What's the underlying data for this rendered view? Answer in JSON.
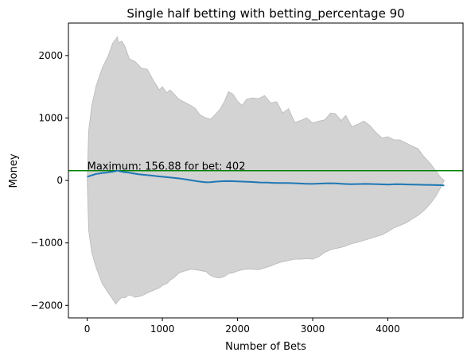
{
  "chart_data": {
    "type": "line",
    "title": "Single half betting with betting_percentage 90",
    "xlabel": "Number of Bets",
    "ylabel": "Money",
    "xlim": [
      -250,
      5000
    ],
    "ylim": [
      -2200,
      2520
    ],
    "x_ticks": [
      0,
      1000,
      2000,
      3000,
      4000
    ],
    "y_ticks": [
      -2000,
      -1000,
      0,
      1000,
      2000
    ],
    "x_tick_labels": [
      "0",
      "1000",
      "2000",
      "3000",
      "4000"
    ],
    "y_tick_labels": [
      "−2000",
      "−1000",
      "0",
      "1000",
      "2000"
    ],
    "grid": false,
    "colors": {
      "mean_line": "#1f77b4",
      "band_fill": "#d3d3d3",
      "band_edge": "#b8b8b8",
      "max_line": "#008000"
    },
    "band": {
      "x": [
        0,
        20,
        60,
        120,
        200,
        280,
        340,
        380,
        400,
        420,
        460,
        500,
        560,
        640,
        720,
        800,
        880,
        960,
        1000,
        1060,
        1100,
        1160,
        1220,
        1300,
        1380,
        1440,
        1500,
        1580,
        1640,
        1700,
        1760,
        1820,
        1880,
        1940,
        2000,
        2060,
        2120,
        2200,
        2280,
        2360,
        2440,
        2520,
        2600,
        2680,
        2760,
        2840,
        2920,
        3000,
        3080,
        3160,
        3240,
        3300,
        3380,
        3440,
        3520,
        3600,
        3680,
        3760,
        3840,
        3920,
        4000,
        4080,
        4160,
        4240,
        4320,
        4400,
        4480,
        4560,
        4640,
        4700,
        4750
      ],
      "upper": [
        0,
        800,
        1200,
        1520,
        1800,
        2000,
        2200,
        2260,
        2300,
        2200,
        2230,
        2150,
        1950,
        1900,
        1800,
        1780,
        1600,
        1450,
        1500,
        1400,
        1450,
        1380,
        1300,
        1250,
        1200,
        1150,
        1050,
        1000,
        980,
        1050,
        1130,
        1250,
        1420,
        1380,
        1270,
        1200,
        1300,
        1320,
        1310,
        1360,
        1240,
        1260,
        1080,
        1150,
        930,
        960,
        1000,
        920,
        950,
        970,
        1080,
        1070,
        960,
        1040,
        860,
        900,
        950,
        880,
        770,
        680,
        700,
        650,
        650,
        600,
        550,
        510,
        380,
        280,
        150,
        50,
        0
      ],
      "lower": [
        0,
        -800,
        -1150,
        -1400,
        -1650,
        -1800,
        -1900,
        -1980,
        -1950,
        -1920,
        -1870,
        -1880,
        -1830,
        -1870,
        -1850,
        -1800,
        -1760,
        -1720,
        -1680,
        -1650,
        -1600,
        -1550,
        -1480,
        -1450,
        -1420,
        -1430,
        -1440,
        -1460,
        -1520,
        -1550,
        -1560,
        -1540,
        -1490,
        -1480,
        -1450,
        -1430,
        -1420,
        -1420,
        -1430,
        -1400,
        -1370,
        -1330,
        -1300,
        -1280,
        -1260,
        -1260,
        -1250,
        -1260,
        -1220,
        -1150,
        -1110,
        -1090,
        -1070,
        -1050,
        -1010,
        -990,
        -960,
        -930,
        -900,
        -870,
        -820,
        -760,
        -720,
        -680,
        -620,
        -560,
        -480,
        -380,
        -250,
        -120,
        0
      ]
    },
    "series": [
      {
        "x": [
          0,
          40,
          80,
          120,
          160,
          200,
          260,
          300,
          340,
          380,
          402,
          440,
          480,
          540,
          600,
          680,
          760,
          840,
          920,
          1000,
          1080,
          1160,
          1240,
          1320,
          1400,
          1480,
          1540,
          1580,
          1640,
          1700,
          1800,
          1900,
          2000,
          2100,
          2200,
          2300,
          2400,
          2500,
          2600,
          2700,
          2800,
          2900,
          3000,
          3100,
          3200,
          3300,
          3400,
          3500,
          3600,
          3700,
          3800,
          3900,
          4000,
          4100,
          4200,
          4300,
          4400,
          4500,
          4600,
          4700,
          4750
        ],
        "values": [
          60,
          75,
          90,
          105,
          110,
          120,
          125,
          135,
          140,
          150,
          156.88,
          145,
          135,
          128,
          115,
          100,
          90,
          80,
          70,
          60,
          50,
          40,
          30,
          15,
          0,
          -15,
          -25,
          -30,
          -28,
          -20,
          -12,
          -10,
          -15,
          -20,
          -25,
          -32,
          -35,
          -40,
          -40,
          -42,
          -48,
          -52,
          -55,
          -50,
          -45,
          -48,
          -55,
          -60,
          -58,
          -55,
          -58,
          -62,
          -65,
          -60,
          -62,
          -65,
          -68,
          -70,
          -72,
          -75,
          -80
        ]
      }
    ],
    "max_line": {
      "y": 156.88,
      "label": "Maximum: 156.88 for bet: 402",
      "label_x": 0,
      "label_y": 156.88
    }
  }
}
